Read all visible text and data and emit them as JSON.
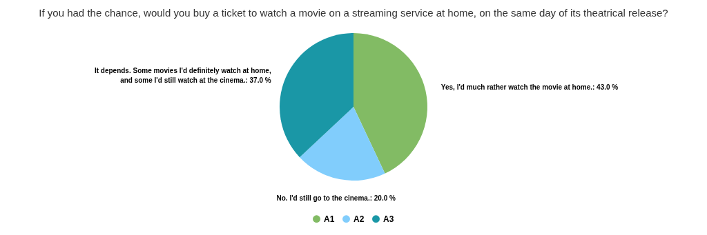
{
  "chart_data": {
    "type": "pie",
    "title": "If you had the chance, would you buy a ticket to watch a movie on a streaming service at home, on the same day of its theatrical release?",
    "categories": [
      "A1",
      "A2",
      "A3"
    ],
    "values": [
      43,
      20,
      37
    ],
    "colors": [
      "#82bb64",
      "#81cdfc",
      "#1a97a6"
    ],
    "value_labels": [
      "Yes, I'd much rather watch the movie at home.: 43.0 %",
      "No. I'd still go to the cinema.: 20.0 %",
      "It depends. Some movies I'd definitely watch at home, and some I'd still watch at the cinema.: 37.0 %"
    ],
    "legend": "bottom"
  }
}
